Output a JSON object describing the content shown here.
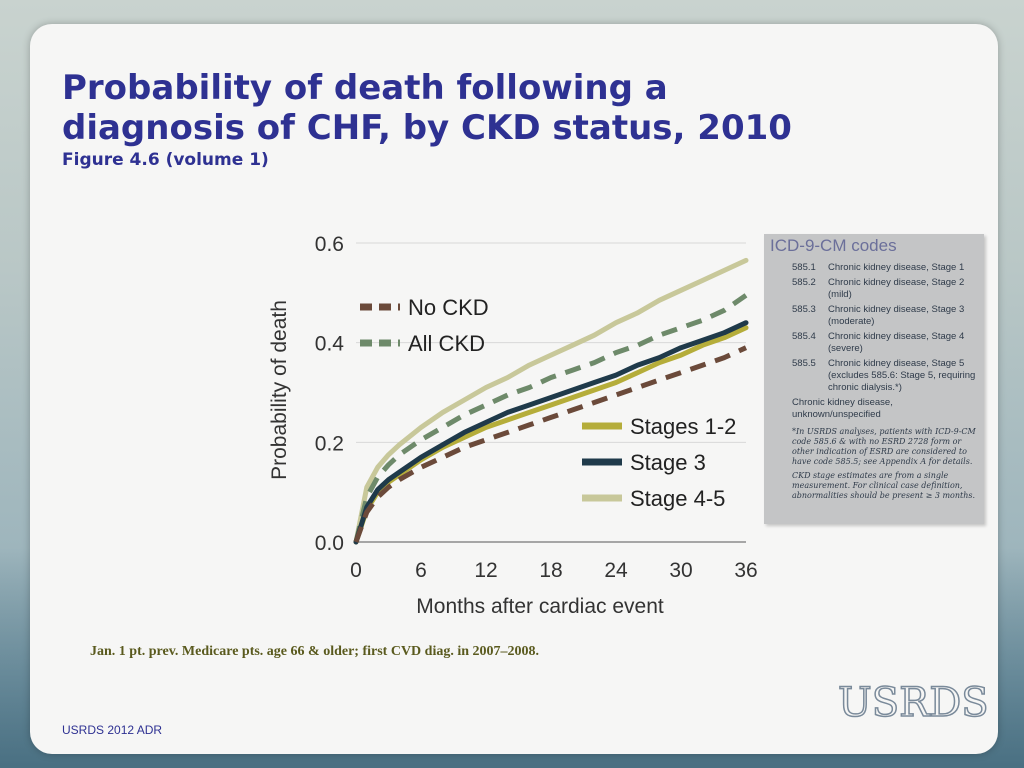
{
  "slide": {
    "title": "Probability of death following a diagnosis of CHF, by CKD status, 2010",
    "subtitle": "Figure 4.6 (volume 1)",
    "footnote": "Jan. 1 pt. prev. Medicare pts. age 66 & older;  first CVD diag. in 2007–2008.",
    "footer": "USRDS 2012 ADR",
    "logo": "USRDS"
  },
  "codes_panel": {
    "title": "ICD-9-CM codes",
    "rows": [
      {
        "code": "585.1",
        "desc": "Chronic kidney disease, Stage 1"
      },
      {
        "code": "585.2",
        "desc": "Chronic kidney disease, Stage 2 (mild)"
      },
      {
        "code": "585.3",
        "desc": "Chronic kidney disease, Stage 3 (moderate)"
      },
      {
        "code": "585.4",
        "desc": "Chronic kidney disease, Stage 4 (severe)"
      },
      {
        "code": "585.5",
        "desc": "Chronic kidney disease, Stage 5 (excludes 585.6: Stage 5, requiring chronic dialysis.*)"
      }
    ],
    "unspecified": "Chronic kidney disease, unknown/unspecified",
    "note1": "*In USRDS analyses, patients with ICD-9-CM code 585.6 & with no ESRD 2728 form or other indication of ESRD are considered to have code 585.5; see Appendix A for details.",
    "note2": "CKD stage estimates are from a single measurement. For clinical case definition, abnormalities should be present ≥ 3 months."
  },
  "chart_data": {
    "type": "line",
    "title": "",
    "xlabel": "Months after cardiac event",
    "ylabel": "Probability of death",
    "xlim": [
      0,
      36
    ],
    "ylim": [
      0,
      0.6
    ],
    "x_ticks": [
      "0",
      "6",
      "12",
      "18",
      "24",
      "30",
      "36"
    ],
    "y_ticks": [
      "0.0",
      "0.2",
      "0.4",
      "0.6"
    ],
    "grid": "horizontal",
    "x": [
      0,
      1,
      2,
      3,
      4,
      6,
      8,
      10,
      12,
      14,
      16,
      18,
      20,
      22,
      24,
      26,
      28,
      30,
      32,
      34,
      36
    ],
    "series": [
      {
        "name": "No CKD",
        "style": "dashed",
        "color": "#6b4a3a",
        "values": [
          0.0,
          0.06,
          0.09,
          0.11,
          0.125,
          0.15,
          0.17,
          0.19,
          0.205,
          0.22,
          0.235,
          0.25,
          0.265,
          0.28,
          0.295,
          0.31,
          0.325,
          0.34,
          0.355,
          0.37,
          0.39
        ]
      },
      {
        "name": "All CKD",
        "style": "dashed",
        "color": "#6e8a6a",
        "values": [
          0.0,
          0.09,
          0.13,
          0.155,
          0.175,
          0.205,
          0.23,
          0.255,
          0.275,
          0.295,
          0.31,
          0.33,
          0.345,
          0.36,
          0.38,
          0.395,
          0.415,
          0.43,
          0.445,
          0.465,
          0.495
        ]
      },
      {
        "name": "Stages 1-2",
        "style": "solid",
        "color": "#b5ad3a",
        "values": [
          0.0,
          0.065,
          0.1,
          0.12,
          0.135,
          0.165,
          0.19,
          0.21,
          0.23,
          0.245,
          0.26,
          0.275,
          0.29,
          0.305,
          0.32,
          0.34,
          0.36,
          0.375,
          0.395,
          0.41,
          0.43
        ]
      },
      {
        "name": "Stage 3",
        "style": "solid",
        "color": "#1f3a4a",
        "values": [
          0.0,
          0.07,
          0.105,
          0.125,
          0.14,
          0.17,
          0.195,
          0.22,
          0.24,
          0.26,
          0.275,
          0.29,
          0.305,
          0.32,
          0.335,
          0.355,
          0.37,
          0.39,
          0.405,
          0.42,
          0.44
        ]
      },
      {
        "name": "Stage 4-5",
        "style": "solid",
        "color": "#c8c89a",
        "values": [
          0.0,
          0.11,
          0.15,
          0.175,
          0.195,
          0.23,
          0.26,
          0.285,
          0.31,
          0.33,
          0.355,
          0.375,
          0.395,
          0.415,
          0.44,
          0.46,
          0.485,
          0.505,
          0.525,
          0.545,
          0.565
        ]
      }
    ],
    "legend_groups": [
      {
        "placement": "upper-left",
        "entries": [
          "No CKD",
          "All CKD"
        ]
      },
      {
        "placement": "lower-right",
        "entries": [
          "Stages 1-2",
          "Stage 3",
          "Stage 4-5"
        ]
      }
    ]
  }
}
